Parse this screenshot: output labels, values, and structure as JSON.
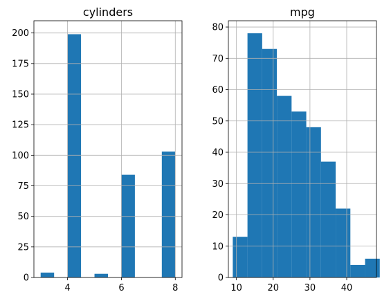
{
  "chart_data": [
    {
      "type": "bar",
      "title": "cylinders",
      "xlabel": "",
      "ylabel": "",
      "grid": true,
      "bar_color": "#1f77b4",
      "xlim": [
        2.75,
        8.25
      ],
      "ylim": [
        0,
        210
      ],
      "xticks": [
        4,
        6,
        8
      ],
      "yticks": [
        0,
        25,
        50,
        75,
        100,
        125,
        150,
        175,
        200
      ],
      "bins": [
        {
          "x0": 3.0,
          "x1": 3.5,
          "count": 4
        },
        {
          "x0": 3.5,
          "x1": 4.0,
          "count": 0
        },
        {
          "x0": 4.0,
          "x1": 4.5,
          "count": 199
        },
        {
          "x0": 4.5,
          "x1": 5.0,
          "count": 0
        },
        {
          "x0": 5.0,
          "x1": 5.5,
          "count": 3
        },
        {
          "x0": 5.5,
          "x1": 6.0,
          "count": 0
        },
        {
          "x0": 6.0,
          "x1": 6.5,
          "count": 84
        },
        {
          "x0": 6.5,
          "x1": 7.0,
          "count": 0
        },
        {
          "x0": 7.0,
          "x1": 7.5,
          "count": 0
        },
        {
          "x0": 7.5,
          "x1": 8.0,
          "count": 103
        }
      ]
    },
    {
      "type": "bar",
      "title": "mpg",
      "xlabel": "",
      "ylabel": "",
      "grid": true,
      "bar_color": "#1f77b4",
      "xlim": [
        7.8,
        48.1
      ],
      "ylim": [
        0,
        82
      ],
      "xticks": [
        10,
        20,
        30,
        40
      ],
      "yticks": [
        0,
        10,
        20,
        30,
        40,
        50,
        60,
        70,
        80
      ],
      "bins": [
        {
          "x0": 9.0,
          "x1": 13.0,
          "count": 13
        },
        {
          "x0": 13.0,
          "x1": 17.0,
          "count": 78
        },
        {
          "x0": 17.0,
          "x1": 21.0,
          "count": 73
        },
        {
          "x0": 21.0,
          "x1": 25.0,
          "count": 58
        },
        {
          "x0": 25.0,
          "x1": 29.0,
          "count": 53
        },
        {
          "x0": 29.0,
          "x1": 33.0,
          "count": 48
        },
        {
          "x0": 33.0,
          "x1": 37.0,
          "count": 37
        },
        {
          "x0": 37.0,
          "x1": 41.0,
          "count": 22
        },
        {
          "x0": 41.0,
          "x1": 45.0,
          "count": 4
        },
        {
          "x0": 45.0,
          "x1": 49.0,
          "count": 6
        }
      ]
    }
  ]
}
